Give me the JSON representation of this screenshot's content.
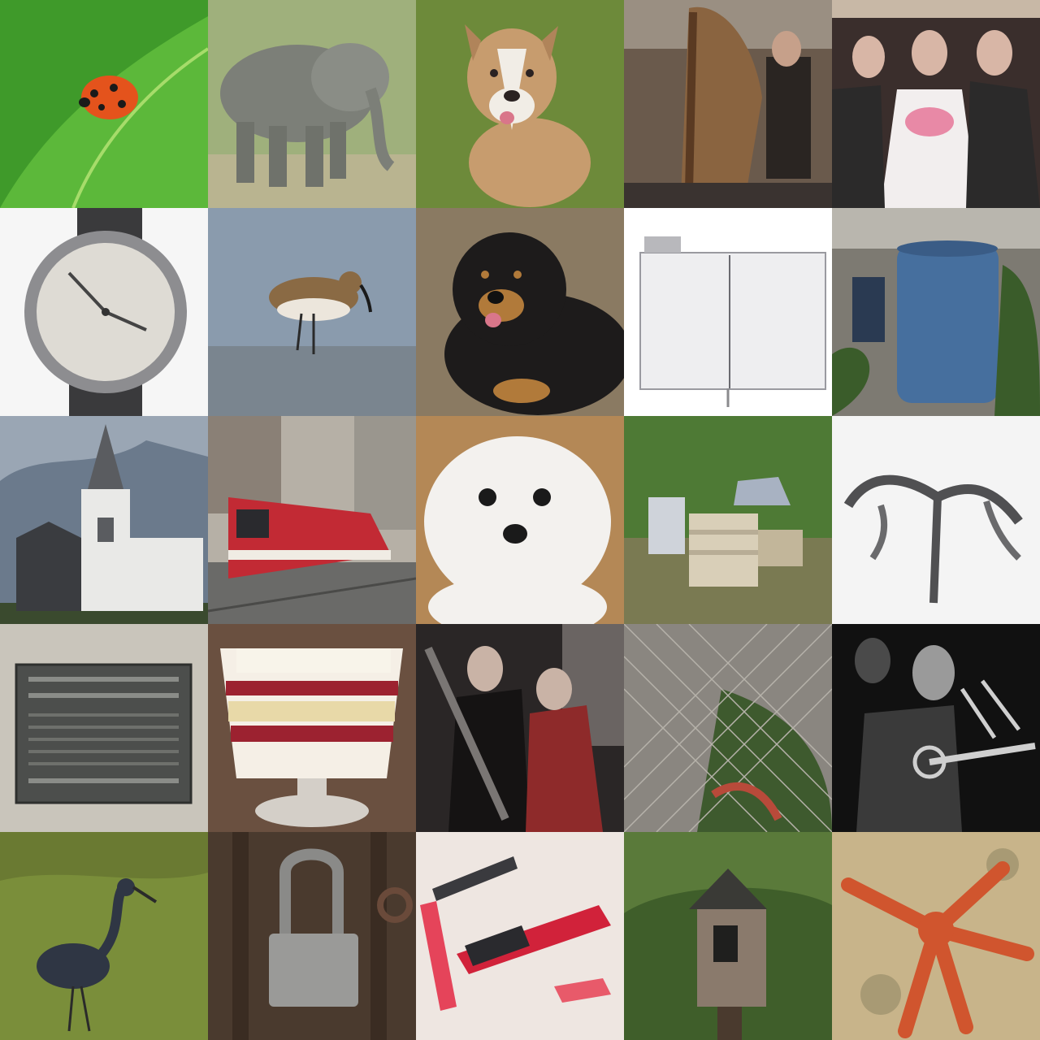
{
  "grid": {
    "rows": 5,
    "columns": 5,
    "tiles": [
      {
        "subject": "ladybug",
        "colors": [
          "#3f9a2a",
          "#e4531c"
        ]
      },
      {
        "subject": "elephant",
        "colors": [
          "#7c7f78",
          "#8fa46a"
        ]
      },
      {
        "subject": "dog",
        "colors": [
          "#c79c6e",
          "#6d8a3a"
        ]
      },
      {
        "subject": "harp-player",
        "colors": [
          "#8a6440",
          "#2a2522"
        ]
      },
      {
        "subject": "wedding-party",
        "colors": [
          "#f2eeee",
          "#2b2a2a"
        ]
      },
      {
        "subject": "wristwatch",
        "colors": [
          "#dedbd4",
          "#3a3a3c"
        ]
      },
      {
        "subject": "sandpiper",
        "colors": [
          "#8a9bad",
          "#8a6a44"
        ]
      },
      {
        "subject": "black-dog",
        "colors": [
          "#1d1b1b",
          "#b17a3a"
        ]
      },
      {
        "subject": "blank-panel",
        "colors": [
          "#eeeef0",
          "#9a9aa0"
        ]
      },
      {
        "subject": "rain-barrel",
        "colors": [
          "#466f9e",
          "#3a5c2a"
        ]
      },
      {
        "subject": "church",
        "colors": [
          "#e9e9e7",
          "#6b7a8c"
        ]
      },
      {
        "subject": "tram",
        "colors": [
          "#c22a34",
          "#6a6a68"
        ]
      },
      {
        "subject": "white-dog",
        "colors": [
          "#f3f1ee",
          "#b48856"
        ]
      },
      {
        "subject": "beehives",
        "colors": [
          "#4e7a35",
          "#d9cfb8"
        ]
      },
      {
        "subject": "metal-sculpture",
        "colors": [
          "#f4f4f4",
          "#505052"
        ]
      },
      {
        "subject": "plaque",
        "colors": [
          "#4c4e4c",
          "#c9c5bb"
        ]
      },
      {
        "subject": "trifle",
        "colors": [
          "#f5efe6",
          "#9c2230"
        ]
      },
      {
        "subject": "musicians",
        "colors": [
          "#2a2626",
          "#8e2a2a"
        ]
      },
      {
        "subject": "chain-link-fence",
        "colors": [
          "#8a8680",
          "#3e5a2e"
        ]
      },
      {
        "subject": "trumpet-player",
        "colors": [
          "#111111",
          "#cfcfcf"
        ]
      },
      {
        "subject": "heron",
        "colors": [
          "#7a8e3a",
          "#2f3644"
        ]
      },
      {
        "subject": "padlock",
        "colors": [
          "#4a3a2e",
          "#9a9a98"
        ]
      },
      {
        "subject": "lipsticks",
        "colors": [
          "#eee6e1",
          "#d1223a"
        ]
      },
      {
        "subject": "birdhouse",
        "colors": [
          "#3f5e2a",
          "#8a7a6c"
        ]
      },
      {
        "subject": "starfish",
        "colors": [
          "#c8b48a",
          "#d0552e"
        ]
      }
    ]
  }
}
